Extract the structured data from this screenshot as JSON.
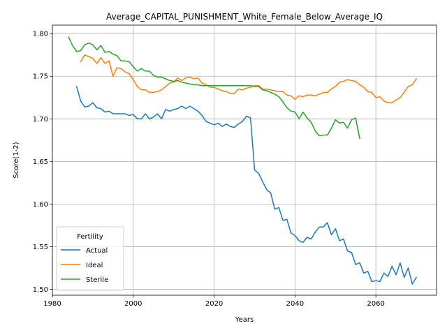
{
  "chart_data": {
    "type": "line",
    "title": "Average_CAPITAL_PUNISHMENT_White_Female_Below_Average_IQ",
    "xlabel": "Years",
    "ylabel": "Score(1-2)",
    "xlim": [
      1980,
      2075
    ],
    "ylim": [
      1.493,
      1.81
    ],
    "xticks": [
      1980,
      2000,
      2020,
      2040,
      2060
    ],
    "xtick_labels": [
      "1980",
      "2000",
      "2020",
      "2040",
      "2060"
    ],
    "yticks": [
      1.5,
      1.55,
      1.6,
      1.65,
      1.7,
      1.75,
      1.8
    ],
    "ytick_labels": [
      "1.50",
      "1.55",
      "1.60",
      "1.65",
      "1.70",
      "1.75",
      "1.80"
    ],
    "grid": true,
    "legend": {
      "title": "Fertility",
      "placement": "lower-left"
    },
    "series": [
      {
        "name": "Actual",
        "color": "#1f77b4",
        "x": [
          1986,
          1987,
          1988,
          1989,
          1990,
          1991,
          1992,
          1993,
          1994,
          1995,
          1996,
          1997,
          1998,
          1999,
          2000,
          2001,
          2002,
          2003,
          2004,
          2005,
          2006,
          2007,
          2008,
          2009,
          2010,
          2011,
          2012,
          2013,
          2014,
          2015,
          2016,
          2017,
          2018,
          2019,
          2020,
          2021,
          2022,
          2023,
          2024,
          2025,
          2026,
          2027,
          2028,
          2029,
          2030,
          2031,
          2032,
          2033,
          2034,
          2035,
          2036,
          2037,
          2038,
          2039,
          2040,
          2041,
          2042,
          2043,
          2044,
          2045,
          2046,
          2047,
          2048,
          2049,
          2050,
          2051,
          2052,
          2053,
          2054,
          2055,
          2056,
          2057,
          2058,
          2059,
          2060,
          2061,
          2062,
          2063,
          2064,
          2065,
          2066,
          2067,
          2068,
          2069,
          2070
        ],
        "y": [
          1.738,
          1.721,
          1.714,
          1.715,
          1.719,
          1.713,
          1.712,
          1.708,
          1.709,
          1.706,
          1.706,
          1.706,
          1.706,
          1.704,
          1.705,
          1.7,
          1.7,
          1.706,
          1.7,
          1.702,
          1.706,
          1.7,
          1.711,
          1.709,
          1.711,
          1.712,
          1.715,
          1.712,
          1.715,
          1.712,
          1.709,
          1.704,
          1.697,
          1.695,
          1.693,
          1.695,
          1.691,
          1.694,
          1.691,
          1.69,
          1.694,
          1.697,
          1.703,
          1.701,
          1.64,
          1.636,
          1.626,
          1.617,
          1.613,
          1.594,
          1.596,
          1.581,
          1.582,
          1.566,
          1.563,
          1.557,
          1.555,
          1.561,
          1.559,
          1.567,
          1.573,
          1.573,
          1.578,
          1.564,
          1.571,
          1.557,
          1.559,
          1.545,
          1.543,
          1.529,
          1.531,
          1.519,
          1.521,
          1.509,
          1.51,
          1.509,
          1.519,
          1.515,
          1.527,
          1.517,
          1.531,
          1.514,
          1.525,
          1.506,
          1.514
        ]
      },
      {
        "name": "Ideal",
        "color": "#ff7f0e",
        "x": [
          1987,
          1988,
          1989,
          1990,
          1991,
          1992,
          1993,
          1994,
          1995,
          1996,
          1997,
          1998,
          1999,
          2000,
          2001,
          2002,
          2003,
          2004,
          2005,
          2006,
          2007,
          2008,
          2009,
          2010,
          2011,
          2012,
          2013,
          2014,
          2015,
          2016,
          2017,
          2018,
          2019,
          2020,
          2021,
          2022,
          2023,
          2024,
          2025,
          2026,
          2027,
          2028,
          2029,
          2030,
          2031,
          2032,
          2033,
          2034,
          2035,
          2036,
          2037,
          2038,
          2039,
          2040,
          2041,
          2042,
          2043,
          2044,
          2045,
          2046,
          2047,
          2048,
          2049,
          2050,
          2051,
          2052,
          2053,
          2054,
          2055,
          2056,
          2057,
          2058,
          2059,
          2060,
          2061,
          2062,
          2063,
          2064,
          2065,
          2066,
          2067,
          2068,
          2069,
          2070
        ],
        "y": [
          1.767,
          1.775,
          1.773,
          1.771,
          1.765,
          1.772,
          1.765,
          1.768,
          1.75,
          1.76,
          1.759,
          1.755,
          1.753,
          1.746,
          1.738,
          1.734,
          1.734,
          1.731,
          1.731,
          1.732,
          1.734,
          1.738,
          1.742,
          1.743,
          1.748,
          1.745,
          1.748,
          1.749,
          1.747,
          1.748,
          1.742,
          1.74,
          1.737,
          1.737,
          1.735,
          1.733,
          1.732,
          1.73,
          1.73,
          1.735,
          1.734,
          1.736,
          1.737,
          1.739,
          1.739,
          1.735,
          1.735,
          1.734,
          1.733,
          1.732,
          1.732,
          1.728,
          1.727,
          1.723,
          1.727,
          1.726,
          1.728,
          1.728,
          1.727,
          1.729,
          1.731,
          1.731,
          1.735,
          1.738,
          1.743,
          1.744,
          1.746,
          1.745,
          1.744,
          1.74,
          1.737,
          1.732,
          1.731,
          1.725,
          1.726,
          1.721,
          1.719,
          1.719,
          1.722,
          1.725,
          1.731,
          1.738,
          1.74,
          1.747
        ]
      },
      {
        "name": "Sterile",
        "color": "#2ca02c",
        "x": [
          1984,
          1985,
          1986,
          1987,
          1988,
          1989,
          1990,
          1991,
          1992,
          1993,
          1994,
          1995,
          1996,
          1997,
          1998,
          1999,
          2000,
          2001,
          2002,
          2003,
          2004,
          2005,
          2006,
          2007,
          2008,
          2009,
          2010,
          2011,
          2012,
          2013,
          2014,
          2015,
          2016,
          2017,
          2018,
          2019,
          2020,
          2021,
          2022,
          2023,
          2024,
          2025,
          2026,
          2027,
          2028,
          2029,
          2030,
          2031,
          2032,
          2033,
          2034,
          2035,
          2036,
          2037,
          2038,
          2039,
          2040,
          2041,
          2042,
          2043,
          2044,
          2045,
          2046,
          2047,
          2048,
          2049,
          2050,
          2051,
          2052,
          2053,
          2054,
          2055,
          2056
        ],
        "y": [
          1.796,
          1.786,
          1.779,
          1.78,
          1.787,
          1.789,
          1.787,
          1.781,
          1.786,
          1.778,
          1.779,
          1.776,
          1.774,
          1.768,
          1.768,
          1.767,
          1.761,
          1.756,
          1.759,
          1.756,
          1.756,
          1.751,
          1.749,
          1.749,
          1.747,
          1.745,
          1.744,
          1.745,
          1.743,
          1.742,
          1.741,
          1.74,
          1.74,
          1.739,
          1.739,
          1.739,
          1.739,
          1.739,
          1.739,
          1.739,
          1.739,
          1.739,
          1.739,
          1.739,
          1.739,
          1.739,
          1.738,
          1.738,
          1.734,
          1.733,
          1.731,
          1.729,
          1.726,
          1.72,
          1.713,
          1.709,
          1.708,
          1.7,
          1.708,
          1.701,
          1.696,
          1.686,
          1.68,
          1.681,
          1.681,
          1.689,
          1.699,
          1.695,
          1.696,
          1.689,
          1.699,
          1.701,
          1.677
        ]
      }
    ]
  }
}
